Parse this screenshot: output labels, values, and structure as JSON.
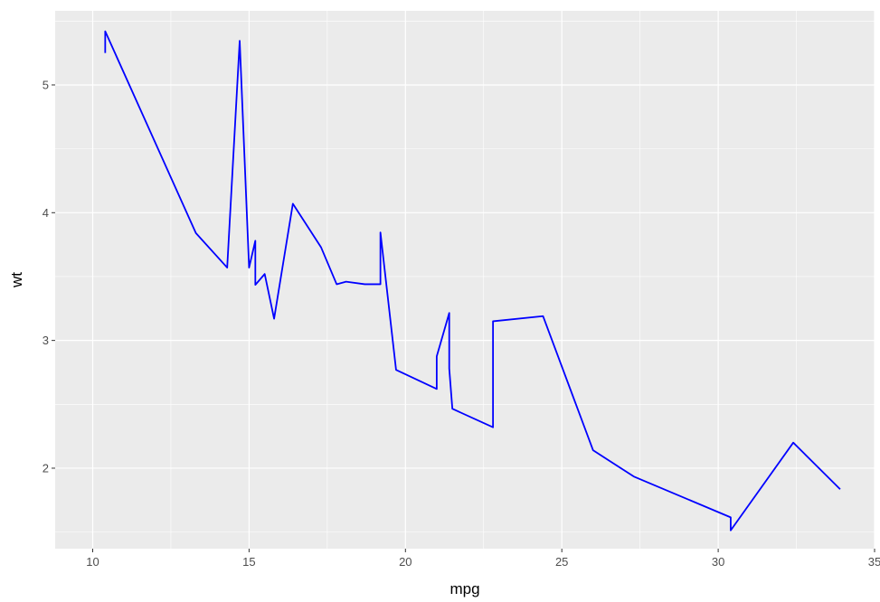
{
  "chart_data": {
    "type": "line",
    "xlabel": "mpg",
    "ylabel": "wt",
    "xlim": [
      8.8,
      35.0
    ],
    "ylim": [
      1.37,
      5.58
    ],
    "x_ticks": [
      10,
      15,
      20,
      25,
      30,
      35
    ],
    "y_ticks": [
      2,
      3,
      4,
      5
    ],
    "grid": true,
    "legend": "none",
    "colors": {
      "line": "#0000ff",
      "panel_background": "#ebebeb",
      "grid": "#ffffff"
    },
    "series": [
      {
        "x": [
          10.4,
          10.4,
          13.3,
          14.3,
          14.7,
          15.0,
          15.2,
          15.2,
          15.5,
          15.8,
          16.4,
          17.3,
          17.8,
          18.1,
          18.7,
          19.2,
          19.2,
          19.7,
          21.0,
          21.0,
          21.4,
          21.4,
          21.5,
          22.8,
          22.8,
          24.4,
          26.0,
          27.3,
          30.4,
          30.4,
          32.4,
          33.9
        ],
        "y": [
          5.25,
          5.42,
          3.84,
          3.57,
          5.345,
          3.57,
          3.78,
          3.435,
          3.52,
          3.17,
          4.07,
          3.73,
          3.44,
          3.46,
          3.44,
          3.44,
          3.845,
          2.77,
          2.62,
          2.875,
          3.215,
          2.78,
          2.465,
          2.32,
          3.15,
          3.19,
          2.14,
          1.935,
          1.615,
          1.513,
          2.2,
          1.835
        ]
      }
    ]
  }
}
